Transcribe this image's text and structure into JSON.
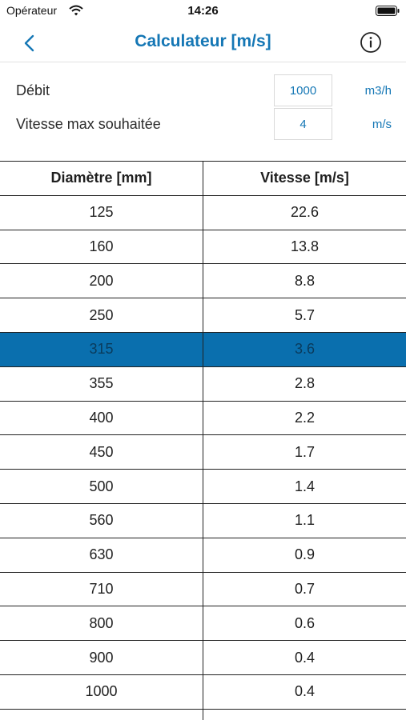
{
  "status_bar": {
    "carrier": "Opérateur",
    "time": "14:26",
    "wifi_icon": "wifi-icon",
    "battery_icon": "battery-icon"
  },
  "nav": {
    "title": "Calculateur [m/s]",
    "back_icon": "chevron-left-icon",
    "info_icon": "info-icon"
  },
  "params": {
    "debit": {
      "label": "Débit",
      "value": "1000",
      "unit": "m3/h"
    },
    "vitesse_max": {
      "label": "Vitesse max souhaitée",
      "value": "4",
      "unit": "m/s"
    }
  },
  "table": {
    "headers": [
      "Diamètre [mm]",
      "Vitesse [m/s]"
    ],
    "rows": [
      [
        "125",
        "22.6"
      ],
      [
        "160",
        "13.8"
      ],
      [
        "200",
        "8.8"
      ],
      [
        "250",
        "5.7"
      ],
      [
        "315",
        "3.6"
      ],
      [
        "355",
        "2.8"
      ],
      [
        "400",
        "2.2"
      ],
      [
        "450",
        "1.7"
      ],
      [
        "500",
        "1.4"
      ],
      [
        "560",
        "1.1"
      ],
      [
        "630",
        "0.9"
      ],
      [
        "710",
        "0.7"
      ],
      [
        "800",
        "0.6"
      ],
      [
        "900",
        "0.4"
      ],
      [
        "1000",
        "0.4"
      ],
      [
        "",
        ""
      ]
    ],
    "selected_row": 4
  },
  "colors": {
    "accent": "#1577b5",
    "selected_row": "#0a6fae"
  }
}
